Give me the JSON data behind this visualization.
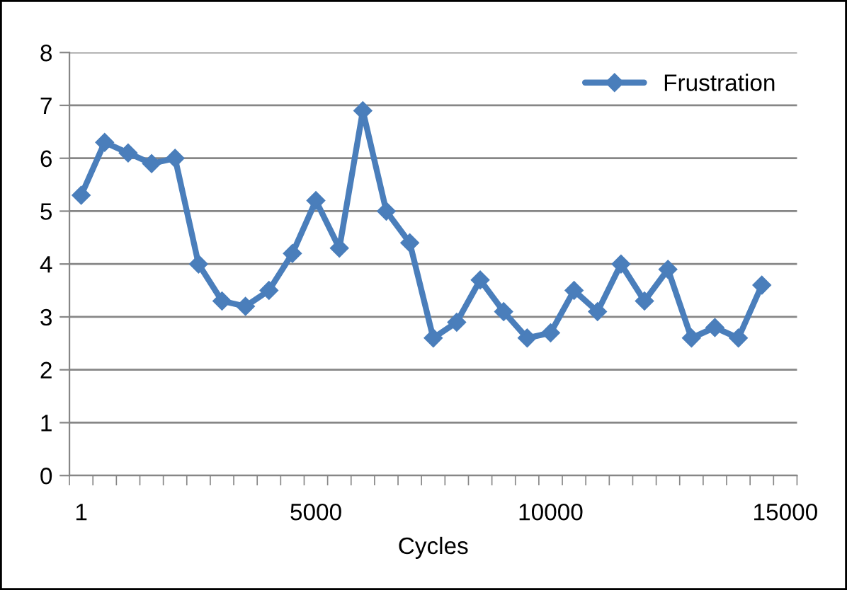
{
  "chart_data": {
    "type": "line",
    "xlabel": "Cycles",
    "categories": [
      "1",
      null,
      null,
      null,
      null,
      null,
      null,
      null,
      null,
      null,
      "5000",
      null,
      null,
      null,
      null,
      null,
      null,
      null,
      null,
      null,
      "10000",
      null,
      null,
      null,
      null,
      null,
      null,
      null,
      null,
      null,
      "15000"
    ],
    "series": [
      {
        "name": "Frustration",
        "color": "#4a7ebb",
        "values": [
          5.3,
          6.3,
          6.1,
          5.9,
          6.0,
          4.0,
          3.3,
          3.2,
          3.5,
          4.2,
          5.2,
          4.3,
          6.9,
          5.0,
          4.4,
          2.6,
          2.9,
          3.7,
          3.1,
          2.6,
          2.7,
          3.5,
          3.1,
          4.0,
          3.3,
          3.9,
          2.6,
          2.8,
          2.6,
          3.6,
          null
        ]
      }
    ],
    "ylim": [
      0,
      8
    ],
    "yticks": [
      0,
      1,
      2,
      3,
      4,
      5,
      6,
      7,
      8
    ],
    "grid": "y",
    "legend": "top right",
    "marker": "diamond",
    "line_style": "solid"
  }
}
